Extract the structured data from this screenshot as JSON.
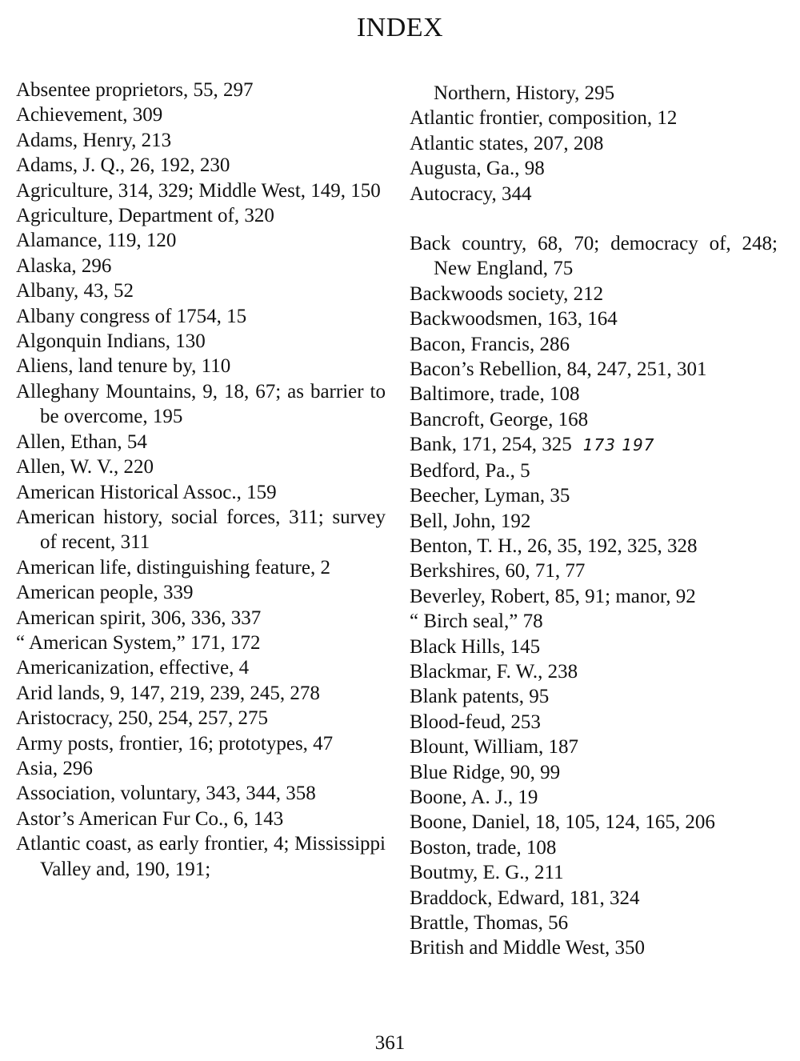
{
  "title": "INDEX",
  "page_number": "361",
  "left_column": [
    "Absentee proprietors, 55, 297",
    "Achievement, 309",
    "Adams, Henry, 213",
    "Adams, J. Q., 26, 192, 230",
    "Agriculture, 314, 329; Middle West, 149, 150",
    "Agriculture, Department of, 320",
    "Alamance, 119, 120",
    "Alaska, 296",
    "Albany, 43, 52",
    "Albany congress of 1754, 15",
    "Algonquin Indians, 130",
    "Aliens, land tenure by, 110",
    "Alleghany Mountains, 9, 18, 67; as barrier to be overcome, 195",
    "Allen, Ethan, 54",
    "Allen, W. V., 220",
    "American Historical Assoc., 159",
    "American history, social forces, 311; survey of recent, 311",
    "American life, distinguishing feature, 2",
    "American people, 339",
    "American spirit, 306, 336, 337",
    "“ American System,” 171, 172",
    "Americanization, effective, 4",
    "Arid lands, 9, 147, 219, 239, 245, 278",
    "Aristocracy, 250, 254, 257, 275",
    "Army posts, frontier, 16; prototypes, 47",
    "Asia, 296",
    "Association, voluntary, 343, 344, 358",
    "Astor’s American Fur Co., 6, 143",
    "Atlantic coast, as early frontier, 4; Mississippi Valley and, 190, 191;"
  ],
  "right_column_continuation": "Northern, History, 295",
  "right_column_a": [
    "Atlantic frontier, composition, 12",
    "Atlantic states, 207, 208",
    "Augusta, Ga., 98",
    "Autocracy, 344"
  ],
  "right_column_b": [
    "Back country, 68, 70; democracy of, 248; New England, 75",
    "Backwoods society, 212",
    "Backwoodsmen, 163, 164",
    "Bacon, Francis, 286",
    "Bacon’s Rebellion, 84, 247, 251, 301",
    "Baltimore, trade, 108",
    "Bancroft, George, 168"
  ],
  "bank_entry": "Bank, 171, 254, 325",
  "bank_handwritten_note": "173 197",
  "right_column_c": [
    "Bedford, Pa., 5",
    "Beecher, Lyman, 35",
    "Bell, John, 192",
    "Benton, T. H., 26, 35, 192, 325, 328",
    "Berkshires, 60, 71, 77",
    "Beverley, Robert, 85, 91; manor, 92",
    "“ Birch seal,” 78",
    "Black Hills, 145",
    "Blackmar, F. W., 238",
    "Blank patents, 95",
    "Blood-feud, 253",
    "Blount, William, 187",
    "Blue Ridge, 90, 99",
    "Boone, A. J., 19",
    "Boone, Daniel, 18, 105, 124, 165, 206",
    "Boston, trade, 108",
    "Boutmy, E. G., 211",
    "Braddock, Edward, 181, 324",
    "Brattle, Thomas, 56",
    "British and Middle West, 350"
  ]
}
